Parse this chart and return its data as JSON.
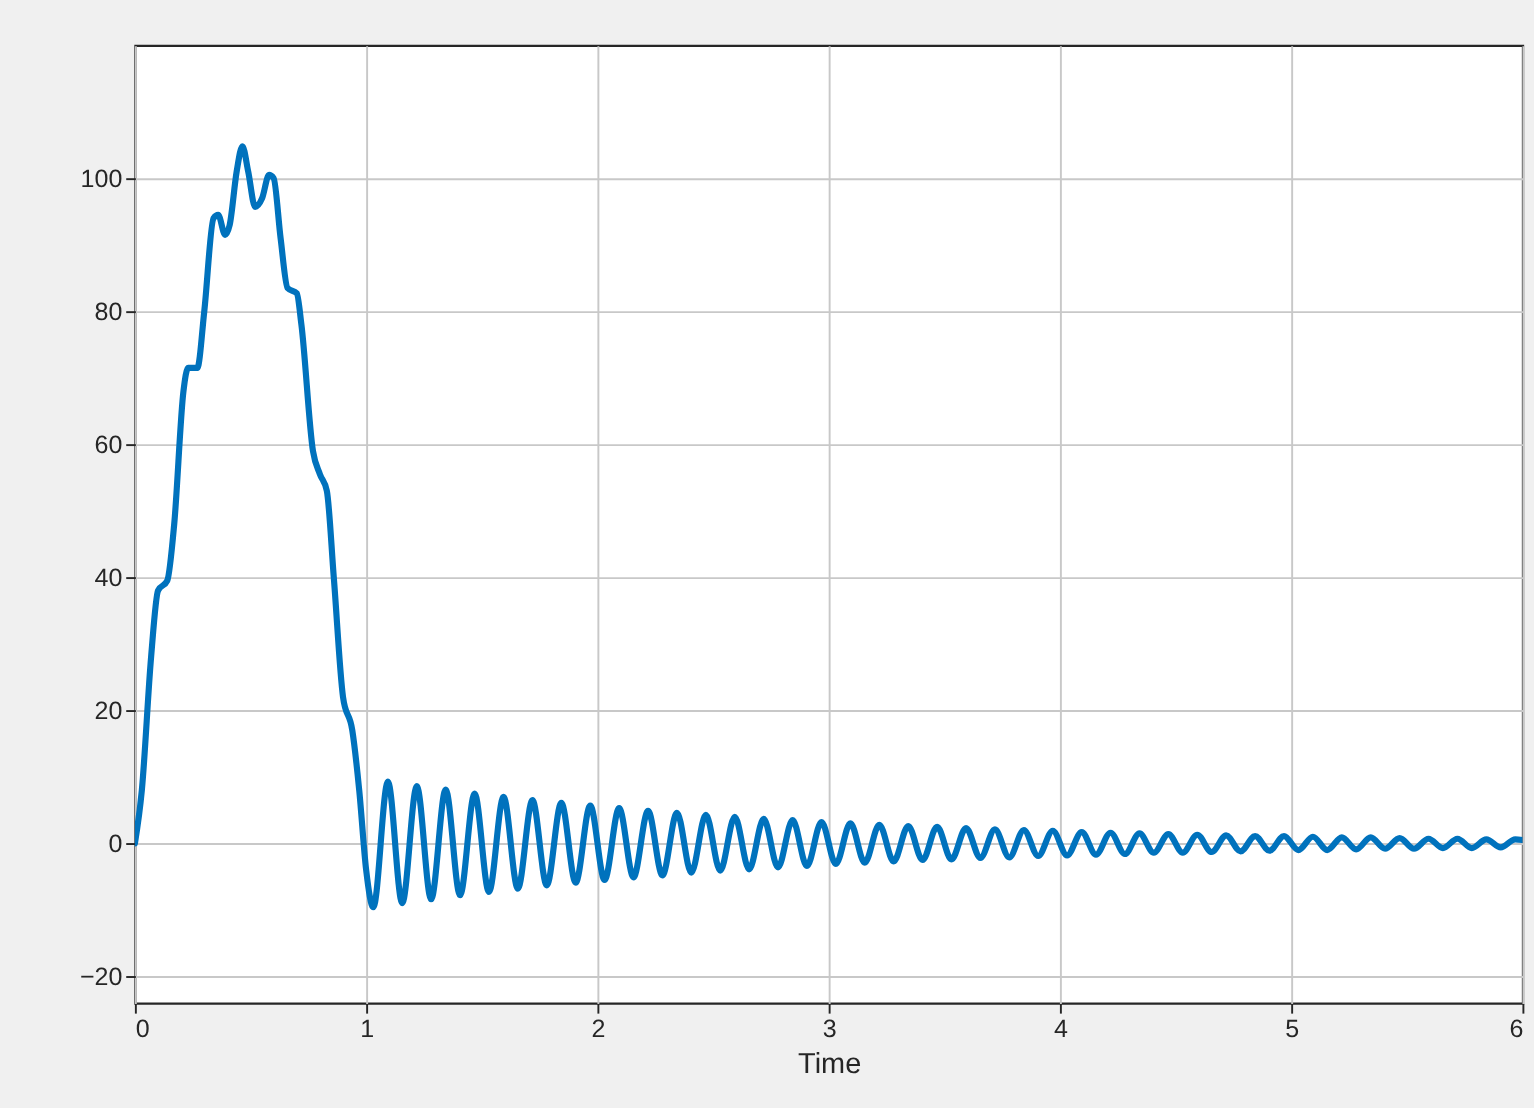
{
  "chart_data": {
    "type": "line",
    "xlabel": "Time",
    "xlim": [
      0,
      6
    ],
    "xticks": [
      0,
      1,
      2,
      3,
      4,
      5,
      6
    ],
    "ylim": [
      -24,
      120
    ],
    "yticks": [
      -20,
      0,
      20,
      40,
      60,
      80,
      100
    ],
    "grid": true,
    "line_style": "solid",
    "marker": "none",
    "series": [
      {
        "color": "#0072bd",
        "x": [
          0,
          0.03,
          0.07,
          0.1,
          0.14,
          0.17,
          0.21,
          0.23,
          0.27,
          0.3,
          0.34,
          0.36,
          0.39,
          0.41,
          0.44,
          0.465,
          0.49,
          0.52,
          0.55,
          0.58,
          0.6,
          0.63,
          0.66,
          0.7,
          0.72,
          0.77,
          0.8,
          0.83,
          0.86,
          0.9,
          0.94,
          0.97,
          1.0,
          1.031,
          1.094,
          1.156,
          1.219,
          1.281,
          1.344,
          1.406,
          1.469,
          1.531,
          1.594,
          1.656,
          1.719,
          1.781,
          1.844,
          1.906,
          1.969,
          2.031,
          2.094,
          2.156,
          2.219,
          2.281,
          2.344,
          2.406,
          2.469,
          2.531,
          2.594,
          2.656,
          2.719,
          2.781,
          2.844,
          2.906,
          2.969,
          3.031,
          3.094,
          3.156,
          3.219,
          3.281,
          3.344,
          3.406,
          3.469,
          3.531,
          3.594,
          3.656,
          3.719,
          3.781,
          3.844,
          3.906,
          3.969,
          4.031,
          4.094,
          4.156,
          4.219,
          4.281,
          4.344,
          4.406,
          4.469,
          4.531,
          4.594,
          4.656,
          4.719,
          4.781,
          4.844,
          4.906,
          4.969,
          5.031,
          5.094,
          5.156,
          5.219,
          5.281,
          5.344,
          5.406,
          5.469,
          5.531,
          5.594,
          5.656,
          5.719,
          5.781,
          5.844,
          5.906,
          5.969,
          6.0
        ],
        "values": [
          0,
          8,
          28,
          38,
          39.5,
          48,
          68,
          71.5,
          71.5,
          80,
          94,
          94.5,
          91.5,
          93,
          101,
          104.8,
          101,
          95.7,
          97,
          100.5,
          100,
          91,
          83.5,
          82.7,
          78,
          59,
          55.5,
          53,
          40,
          22,
          17,
          8,
          -4,
          -9.6,
          9.3,
          -9.0,
          8.6,
          -8.4,
          8.1,
          -7.8,
          7.5,
          -7.3,
          7.0,
          -6.8,
          6.5,
          -6.3,
          6.1,
          -5.9,
          5.7,
          -5.5,
          5.3,
          -5.1,
          4.9,
          -4.8,
          4.6,
          -4.4,
          4.3,
          -4.1,
          4.0,
          -3.9,
          3.7,
          -3.6,
          3.5,
          -3.4,
          3.2,
          -3.1,
          3.0,
          -2.9,
          2.8,
          -2.7,
          2.6,
          -2.5,
          2.5,
          -2.4,
          2.3,
          -2.2,
          2.1,
          -2.1,
          2.0,
          -1.9,
          1.9,
          -1.8,
          1.7,
          -1.7,
          1.6,
          -1.6,
          1.5,
          -1.4,
          1.4,
          -1.4,
          1.3,
          -1.3,
          1.2,
          -1.2,
          1.1,
          -1.1,
          1.1,
          -1.0,
          1.0,
          -1.0,
          0.9,
          -0.9,
          0.9,
          -0.8,
          0.8,
          -0.8,
          0.7,
          -0.7,
          0.7,
          -0.7,
          0.6,
          -0.6,
          0.6,
          0.5
        ]
      }
    ]
  }
}
